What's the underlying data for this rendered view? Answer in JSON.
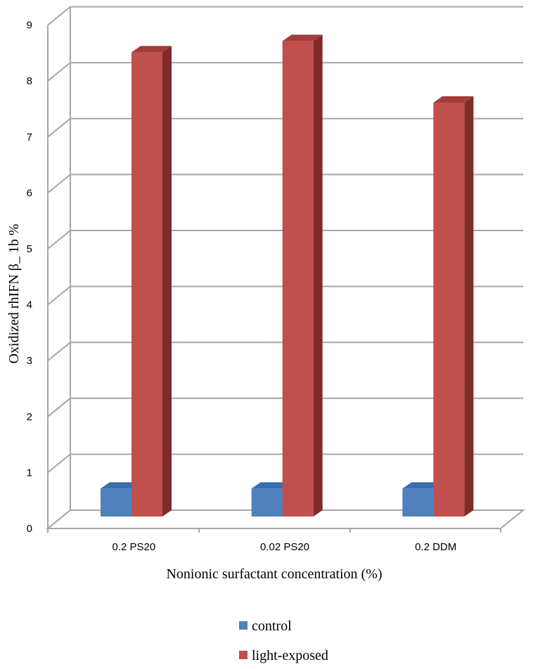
{
  "chart_data": {
    "type": "bar",
    "categories": [
      "0.2 PS20",
      "0.02 PS20",
      "0.2 DDM"
    ],
    "series": [
      {
        "name": "control",
        "values": [
          0.5,
          0.5,
          0.5
        ],
        "color": "#4f81bd",
        "side_color": "#2f5597",
        "top_color": "#3a6cb0"
      },
      {
        "name": "light-exposed",
        "values": [
          8.3,
          8.5,
          7.4
        ],
        "color": "#c0504d",
        "side_color": "#7f2b2a",
        "top_color": "#a33b38"
      }
    ],
    "xlabel": "Nonionic surfactant concentration  (%)",
    "ylabel": "Oxidized  rhIFN β_  1b %",
    "ylim": [
      0,
      9
    ],
    "yticks": [
      0,
      1,
      2,
      3,
      4,
      5,
      6,
      7,
      8,
      9
    ],
    "grid": true,
    "legend_position": "bottom",
    "grid_color": "#a6a6a6"
  }
}
